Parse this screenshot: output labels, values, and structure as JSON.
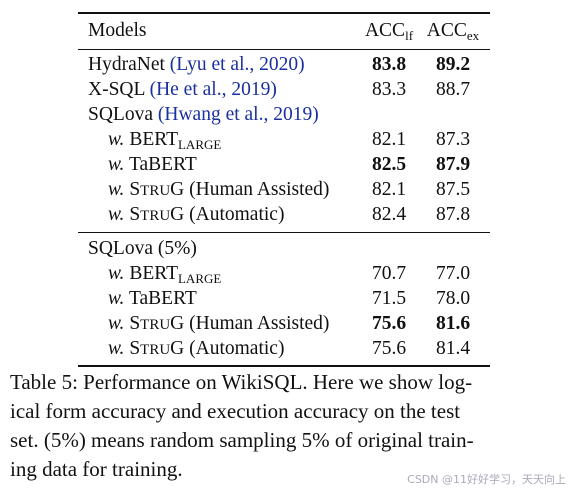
{
  "table": {
    "header": {
      "model": "Models",
      "acc_lf": "ACC",
      "acc_lf_sub": "lf",
      "acc_ex": "ACC",
      "acc_ex_sub": "ex"
    },
    "rows": [
      {
        "name": "HydraNet",
        "cite": "(Lyu et al., 2020)",
        "lf": "83.8",
        "ex": "89.2"
      },
      {
        "name": "X-SQL",
        "cite": "(He et al., 2019)",
        "lf": "83.3",
        "ex": "88.7"
      },
      {
        "name": "SQLova",
        "cite": "(Hwang et al., 2019)",
        "lf": "",
        "ex": ""
      },
      {
        "w": "w.",
        "name": "BERT",
        "sub": "LARGE",
        "lf": "82.1",
        "ex": "87.3"
      },
      {
        "w": "w.",
        "name": "TaBERT",
        "lf": "82.5",
        "ex": "87.9"
      },
      {
        "w": "w.",
        "sc1": "S",
        "sc2": "TRU",
        "sc3": "G",
        "rest": " (Human Assisted)",
        "lf": "82.1",
        "ex": "87.5"
      },
      {
        "w": "w.",
        "sc1": "S",
        "sc2": "TRU",
        "sc3": "G",
        "rest": " (Automatic)",
        "lf": "82.4",
        "ex": "87.8"
      },
      {
        "name": "SQLova (5%)",
        "lf": "",
        "ex": ""
      },
      {
        "w": "w.",
        "name": "BERT",
        "sub": "LARGE",
        "lf": "70.7",
        "ex": "77.0"
      },
      {
        "w": "w.",
        "name": "TaBERT",
        "lf": "71.5",
        "ex": "78.0"
      },
      {
        "w": "w.",
        "sc1": "S",
        "sc2": "TRU",
        "sc3": "G",
        "rest": " (Human Assisted)",
        "lf": "75.6",
        "ex": "81.6"
      },
      {
        "w": "w.",
        "sc1": "S",
        "sc2": "TRU",
        "sc3": "G",
        "rest": " (Automatic)",
        "lf": "75.6",
        "ex": "81.4"
      }
    ]
  },
  "caption": {
    "lines": [
      "Table 5: Performance on WikiSQL. Here we show log-",
      "ical form accuracy and execution accuracy on the test",
      "set. (5%) means random sampling 5% of original train-",
      "ing data for training."
    ]
  },
  "watermark": "CSDN @11好好学习，天天向上"
}
